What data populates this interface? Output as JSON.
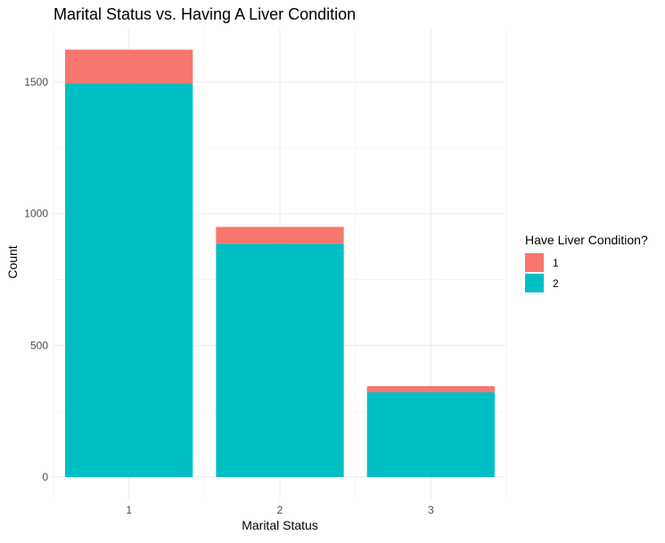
{
  "chart_data": {
    "type": "bar",
    "stacked": true,
    "title": "Marital Status vs. Having A Liver Condition",
    "xlabel": "Marital Status",
    "ylabel": "Count",
    "categories": [
      "1",
      "2",
      "3"
    ],
    "series": [
      {
        "name": "2",
        "values": [
          1496,
          886,
          322
        ],
        "color": "#00BFC4"
      },
      {
        "name": "1",
        "values": [
          127,
          64,
          23
        ],
        "color": "#F8766D"
      }
    ],
    "ylim": [
      0,
      1700
    ],
    "yticks": [
      0,
      500,
      1000,
      1500
    ],
    "grid": true,
    "legend": {
      "title": "Have Liver Condition?",
      "position": "right",
      "items": [
        {
          "label": "1",
          "color": "#F8766D"
        },
        {
          "label": "2",
          "color": "#00BFC4"
        }
      ]
    }
  }
}
